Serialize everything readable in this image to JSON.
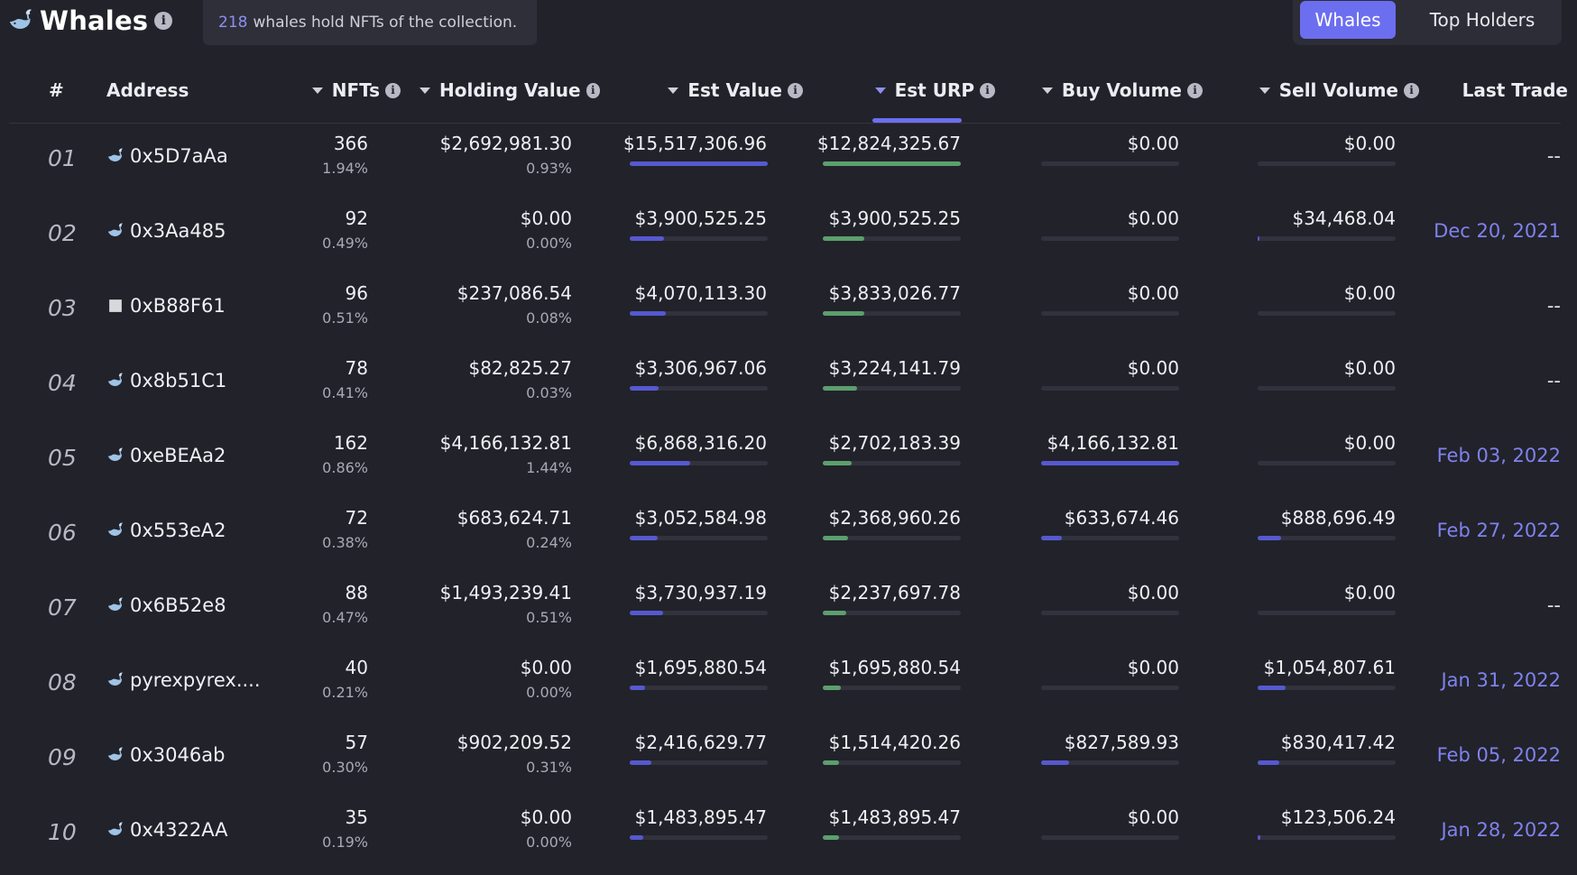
{
  "header": {
    "title": "Whales",
    "whale_count": "218",
    "summary_text": "whales hold NFTs of the collection.",
    "tabs": [
      {
        "label": "Whales",
        "active": true
      },
      {
        "label": "Top Holders",
        "active": false
      }
    ]
  },
  "columns": {
    "rank": "#",
    "address": "Address",
    "nfts": "NFTs",
    "holding_value": "Holding Value",
    "est_value": "Est Value",
    "est_urp": "Est URP",
    "buy_volume": "Buy Volume",
    "sell_volume": "Sell Volume",
    "last_trade": "Last Trade"
  },
  "sorted_column": "Est URP",
  "rows": [
    {
      "rank": "01",
      "address": "0x5D7aAa",
      "icon": "whale-icon",
      "nfts": "366",
      "nfts_pct": "1.94%",
      "holding_value": "$2,692,981.30",
      "holding_pct": "0.93%",
      "est_value": "$15,517,306.96",
      "est_value_fill": 1.0,
      "est_urp": "$12,824,325.67",
      "est_urp_fill": 1.0,
      "buy_volume": "$0.00",
      "buy_fill": 0.0,
      "sell_volume": "$0.00",
      "sell_fill": 0.0,
      "last_trade": "--"
    },
    {
      "rank": "02",
      "address": "0x3Aa485",
      "icon": "whale-icon",
      "nfts": "92",
      "nfts_pct": "0.49%",
      "holding_value": "$0.00",
      "holding_pct": "0.00%",
      "est_value": "$3,900,525.25",
      "est_value_fill": 0.25,
      "est_urp": "$3,900,525.25",
      "est_urp_fill": 0.3,
      "buy_volume": "$0.00",
      "buy_fill": 0.0,
      "sell_volume": "$34,468.04",
      "sell_fill": 0.01,
      "last_trade": "Dec 20, 2021"
    },
    {
      "rank": "03",
      "address": "0xB88F61",
      "icon": "square-icon",
      "nfts": "96",
      "nfts_pct": "0.51%",
      "holding_value": "$237,086.54",
      "holding_pct": "0.08%",
      "est_value": "$4,070,113.30",
      "est_value_fill": 0.26,
      "est_urp": "$3,833,026.77",
      "est_urp_fill": 0.3,
      "buy_volume": "$0.00",
      "buy_fill": 0.0,
      "sell_volume": "$0.00",
      "sell_fill": 0.0,
      "last_trade": "--"
    },
    {
      "rank": "04",
      "address": "0x8b51C1",
      "icon": "whale-icon",
      "nfts": "78",
      "nfts_pct": "0.41%",
      "holding_value": "$82,825.27",
      "holding_pct": "0.03%",
      "est_value": "$3,306,967.06",
      "est_value_fill": 0.21,
      "est_urp": "$3,224,141.79",
      "est_urp_fill": 0.25,
      "buy_volume": "$0.00",
      "buy_fill": 0.0,
      "sell_volume": "$0.00",
      "sell_fill": 0.0,
      "last_trade": "--"
    },
    {
      "rank": "05",
      "address": "0xeBEAa2",
      "icon": "whale-icon",
      "nfts": "162",
      "nfts_pct": "0.86%",
      "holding_value": "$4,166,132.81",
      "holding_pct": "1.44%",
      "est_value": "$6,868,316.20",
      "est_value_fill": 0.44,
      "est_urp": "$2,702,183.39",
      "est_urp_fill": 0.21,
      "buy_volume": "$4,166,132.81",
      "buy_fill": 1.0,
      "sell_volume": "$0.00",
      "sell_fill": 0.0,
      "last_trade": "Feb 03, 2022"
    },
    {
      "rank": "06",
      "address": "0x553eA2",
      "icon": "whale-icon",
      "nfts": "72",
      "nfts_pct": "0.38%",
      "holding_value": "$683,624.71",
      "holding_pct": "0.24%",
      "est_value": "$3,052,584.98",
      "est_value_fill": 0.2,
      "est_urp": "$2,368,960.26",
      "est_urp_fill": 0.18,
      "buy_volume": "$633,674.46",
      "buy_fill": 0.15,
      "sell_volume": "$888,696.49",
      "sell_fill": 0.17,
      "last_trade": "Feb 27, 2022"
    },
    {
      "rank": "07",
      "address": "0x6B52e8",
      "icon": "whale-icon",
      "nfts": "88",
      "nfts_pct": "0.47%",
      "holding_value": "$1,493,239.41",
      "holding_pct": "0.51%",
      "est_value": "$3,730,937.19",
      "est_value_fill": 0.24,
      "est_urp": "$2,237,697.78",
      "est_urp_fill": 0.17,
      "buy_volume": "$0.00",
      "buy_fill": 0.0,
      "sell_volume": "$0.00",
      "sell_fill": 0.0,
      "last_trade": "--"
    },
    {
      "rank": "08",
      "address": "pyrexpyrex....",
      "icon": "whale-icon",
      "nfts": "40",
      "nfts_pct": "0.21%",
      "holding_value": "$0.00",
      "holding_pct": "0.00%",
      "est_value": "$1,695,880.54",
      "est_value_fill": 0.11,
      "est_urp": "$1,695,880.54",
      "est_urp_fill": 0.13,
      "buy_volume": "$0.00",
      "buy_fill": 0.0,
      "sell_volume": "$1,054,807.61",
      "sell_fill": 0.2,
      "last_trade": "Jan 31, 2022"
    },
    {
      "rank": "09",
      "address": "0x3046ab",
      "icon": "whale-icon",
      "nfts": "57",
      "nfts_pct": "0.30%",
      "holding_value": "$902,209.52",
      "holding_pct": "0.31%",
      "est_value": "$2,416,629.77",
      "est_value_fill": 0.16,
      "est_urp": "$1,514,420.26",
      "est_urp_fill": 0.12,
      "buy_volume": "$827,589.93",
      "buy_fill": 0.2,
      "sell_volume": "$830,417.42",
      "sell_fill": 0.16,
      "last_trade": "Feb 05, 2022"
    },
    {
      "rank": "10",
      "address": "0x4322AA",
      "icon": "whale-icon",
      "nfts": "35",
      "nfts_pct": "0.19%",
      "holding_value": "$0.00",
      "holding_pct": "0.00%",
      "est_value": "$1,483,895.47",
      "est_value_fill": 0.1,
      "est_urp": "$1,483,895.47",
      "est_urp_fill": 0.12,
      "buy_volume": "$0.00",
      "buy_fill": 0.0,
      "sell_volume": "$123,506.24",
      "sell_fill": 0.02,
      "last_trade": "Jan 28, 2022"
    }
  ]
}
